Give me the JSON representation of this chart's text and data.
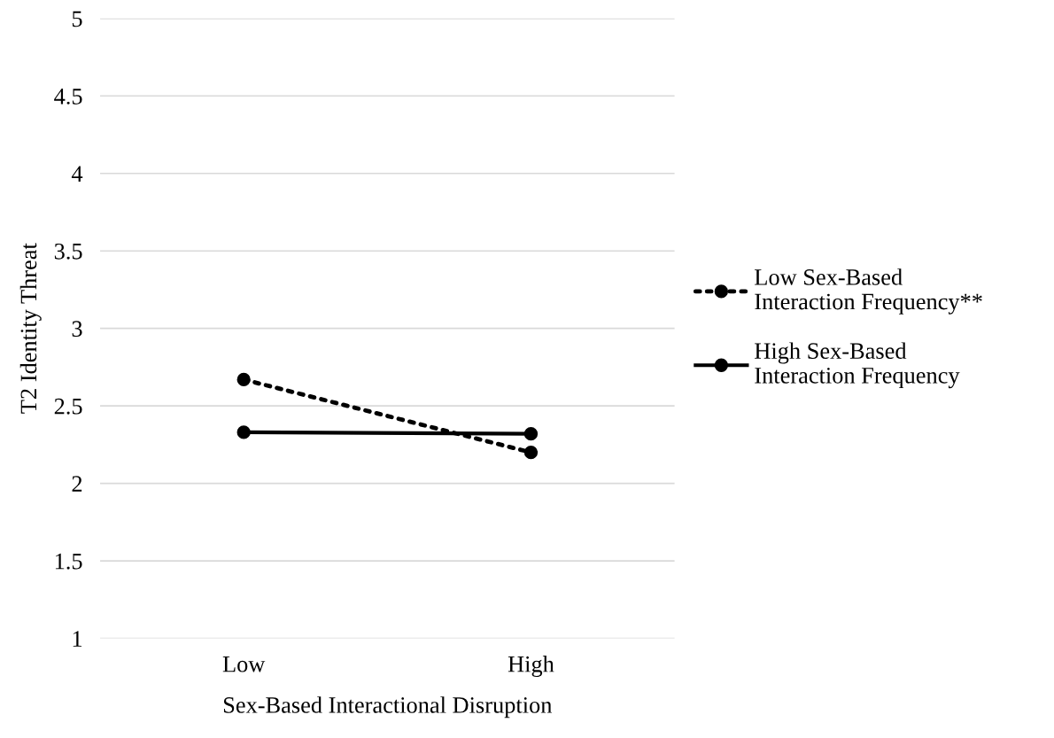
{
  "chart_data": {
    "type": "line",
    "xlabel": "Sex-Based Interactional Disruption",
    "ylabel": "T2 Identity Threat",
    "categories": [
      "Low",
      "High"
    ],
    "series": [
      {
        "name": "Low Sex-Based\nInteraction Frequency**",
        "color": "#000000",
        "values": [
          2.67,
          2.2
        ],
        "line_style": "dotted"
      },
      {
        "name": "High Sex-Based\nInteraction Frequency",
        "color": "#000000",
        "values": [
          2.33,
          2.32
        ],
        "line_style": "solid"
      }
    ],
    "ylim": [
      1,
      5
    ],
    "yticks": [
      1,
      1.5,
      2,
      2.5,
      3,
      3.5,
      4,
      4.5,
      5
    ],
    "grid": "y",
    "legend": "right",
    "marker": "circle"
  }
}
